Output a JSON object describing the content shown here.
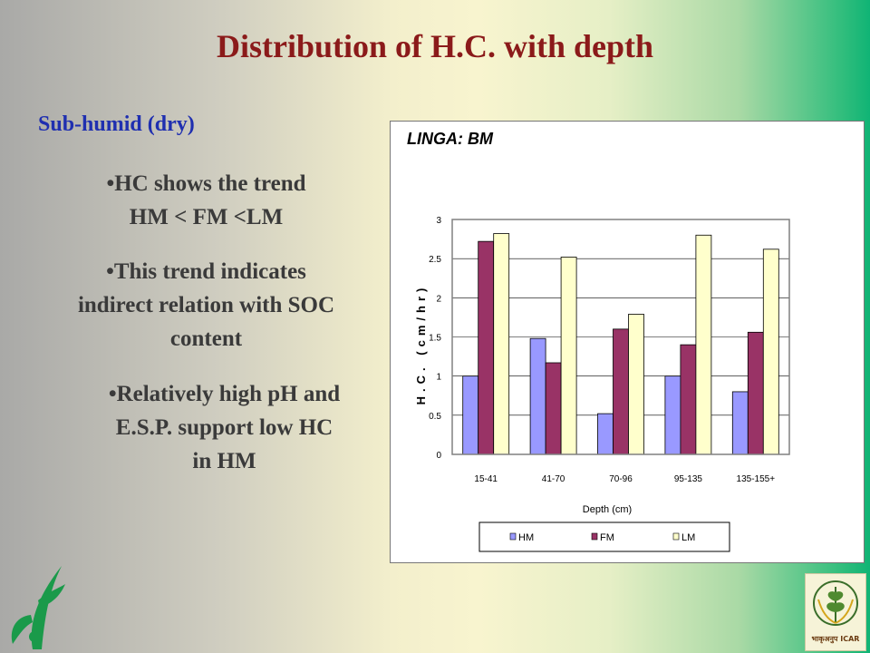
{
  "slide": {
    "title": "Distribution of H.C. with depth",
    "subtitle": "Sub-humid (dry)",
    "bullets": [
      {
        "line1": "•HC shows the trend",
        "line2": "HM < FM <LM"
      },
      {
        "line1": "•This trend indicates",
        "line2": "indirect relation with SOC",
        "line3": "content"
      },
      {
        "line1": "•Relatively high pH and",
        "line2": "E.S.P. support low HC",
        "line3": "in HM"
      }
    ],
    "logo_text": "भाकृअनुप ICAR"
  },
  "chart_data": {
    "type": "bar",
    "title": "LINGA: BM",
    "xlabel": "Depth (cm)",
    "ylabel": "H.C. (cm/hr)",
    "categories": [
      "15-41",
      "41-70",
      "70-96",
      "95-135",
      "135-155+"
    ],
    "ylim": [
      0,
      3
    ],
    "yticks": [
      "0",
      "0.5",
      "1",
      "1.5",
      "2",
      "2.5",
      "3"
    ],
    "grid": true,
    "legend_position": "bottom",
    "series": [
      {
        "name": "HM",
        "color": "#9999ff",
        "values": [
          1.0,
          1.48,
          0.52,
          1.0,
          0.8
        ]
      },
      {
        "name": "FM",
        "color": "#993366",
        "values": [
          2.72,
          1.17,
          1.6,
          1.4,
          1.56
        ]
      },
      {
        "name": "LM",
        "color": "#ffffcc",
        "values": [
          2.82,
          2.52,
          1.79,
          2.8,
          2.62
        ]
      }
    ]
  }
}
